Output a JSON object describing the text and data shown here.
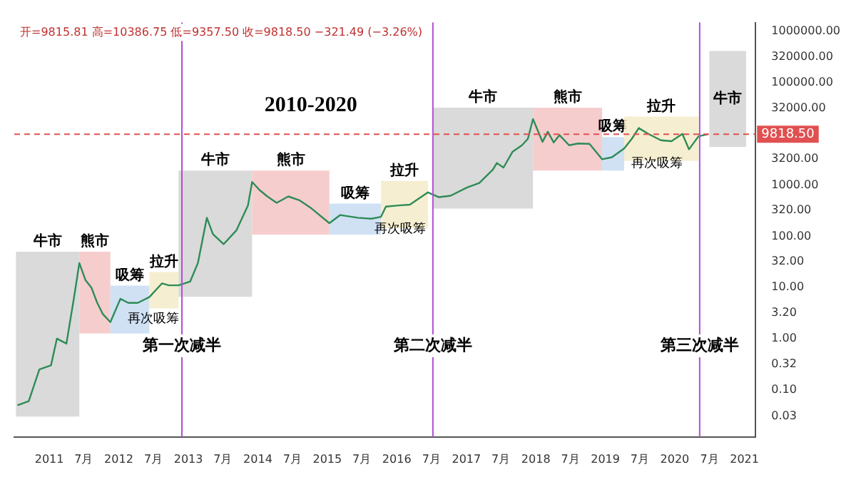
{
  "chart_data": {
    "type": "line",
    "title": "2010-2020",
    "x": [
      "2010-07-18",
      "2010-09-15",
      "2010-11-10",
      "2011-01-10",
      "2011-02-10",
      "2011-04-01",
      "2011-05-10",
      "2011-06-08",
      "2011-07-10",
      "2011-08-10",
      "2011-09-10",
      "2011-10-10",
      "2011-11-18",
      "2012-01-10",
      "2012-02-20",
      "2012-04-10",
      "2012-06-10",
      "2012-08-15",
      "2012-09-20",
      "2012-11-10",
      "2013-01-10",
      "2013-02-20",
      "2013-04-08",
      "2013-05-10",
      "2013-07-05",
      "2013-09-10",
      "2013-11-10",
      "2013-12-02",
      "2014-01-10",
      "2014-02-20",
      "2014-04-10",
      "2014-06-10",
      "2014-08-10",
      "2014-10-10",
      "2015-01-12",
      "2015-03-10",
      "2015-06-10",
      "2015-08-20",
      "2015-10-10",
      "2015-11-05",
      "2016-01-10",
      "2016-03-10",
      "2016-06-13",
      "2016-08-10",
      "2016-10-10",
      "2017-01-05",
      "2017-03-10",
      "2017-05-20",
      "2017-06-10",
      "2017-07-15",
      "2017-09-01",
      "2017-10-20",
      "2017-11-20",
      "2017-12-17",
      "2018-02-05",
      "2018-03-05",
      "2018-04-05",
      "2018-05-05",
      "2018-06-25",
      "2018-08-10",
      "2018-10-10",
      "2018-12-15",
      "2019-02-05",
      "2019-04-10",
      "2019-05-20",
      "2019-06-26",
      "2019-08-15",
      "2019-10-20",
      "2019-12-15",
      "2020-02-10",
      "2020-03-16",
      "2020-05-05",
      "2020-06-22"
    ],
    "series": [
      {
        "color": "#2e8b57",
        "values": [
          0.05,
          0.06,
          0.25,
          0.3,
          1.0,
          0.8,
          6,
          30,
          14,
          10,
          5,
          3,
          2.1,
          6,
          5,
          5,
          6.5,
          12,
          11,
          11,
          13,
          30,
          230,
          110,
          70,
          130,
          400,
          1150,
          800,
          600,
          450,
          600,
          500,
          350,
          180,
          260,
          230,
          220,
          240,
          380,
          400,
          415,
          720,
          580,
          620,
          900,
          1100,
          2000,
          2700,
          2200,
          4500,
          6000,
          8000,
          19500,
          7000,
          11000,
          6800,
          9500,
          6000,
          6500,
          6400,
          3200,
          3500,
          5200,
          8000,
          13000,
          10000,
          7500,
          7200,
          10000,
          5000,
          9000,
          9818.5
        ]
      }
    ],
    "log": "y",
    "grid": false,
    "legend": false,
    "xlim": [
      "2010-07-01",
      "2021-03-01"
    ],
    "xticks": [
      {
        "value": "2011-01-01",
        "label": "2011"
      },
      {
        "value": "2011-07-01",
        "label": "7月"
      },
      {
        "value": "2012-01-01",
        "label": "2012"
      },
      {
        "value": "2012-07-01",
        "label": "7月"
      },
      {
        "value": "2013-01-01",
        "label": "2013"
      },
      {
        "value": "2013-07-01",
        "label": "7月"
      },
      {
        "value": "2014-01-01",
        "label": "2014"
      },
      {
        "value": "2014-07-01",
        "label": "7月"
      },
      {
        "value": "2015-01-01",
        "label": "2015"
      },
      {
        "value": "2015-07-01",
        "label": "7月"
      },
      {
        "value": "2016-01-01",
        "label": "2016"
      },
      {
        "value": "2016-07-01",
        "label": "7月"
      },
      {
        "value": "2017-01-01",
        "label": "2017"
      },
      {
        "value": "2017-07-01",
        "label": "7月"
      },
      {
        "value": "2018-01-01",
        "label": "2018"
      },
      {
        "value": "2018-07-01",
        "label": "7月"
      },
      {
        "value": "2019-01-01",
        "label": "2019"
      },
      {
        "value": "2019-07-01",
        "label": "7月"
      },
      {
        "value": "2020-01-01",
        "label": "2020"
      },
      {
        "value": "2020-07-01",
        "label": "7月"
      },
      {
        "value": "2021-01-01",
        "label": "2021"
      }
    ],
    "ylim": [
      0.012,
      1500000
    ],
    "yticks": [
      {
        "value": 0.03,
        "label": "0.03"
      },
      {
        "value": 0.1,
        "label": "0.10"
      },
      {
        "value": 0.32,
        "label": "0.32"
      },
      {
        "value": 1,
        "label": "1.00"
      },
      {
        "value": 3.2,
        "label": "3.20"
      },
      {
        "value": 10,
        "label": "10.00"
      },
      {
        "value": 32,
        "label": "32.00"
      },
      {
        "value": 100,
        "label": "100.00"
      },
      {
        "value": 320,
        "label": "320.00"
      },
      {
        "value": 1000,
        "label": "1000.00"
      },
      {
        "value": 3200,
        "label": "3200.00"
      },
      {
        "value": 32000,
        "label": "32000.00"
      },
      {
        "value": 100000,
        "label": "100000.00"
      },
      {
        "value": 320000,
        "label": "320000.00"
      },
      {
        "value": 1000000,
        "label": "1000000.00"
      }
    ],
    "bands": [
      {
        "axis": "x",
        "from": "2010-07-10",
        "to": "2011-06-08",
        "label": "牛市",
        "color": "#d4d4d4"
      },
      {
        "axis": "x",
        "from": "2011-06-08",
        "to": "2011-11-18",
        "label": "熊市",
        "color": "#f4c4c4"
      },
      {
        "axis": "x",
        "from": "2011-11-18",
        "to": "2012-06-10",
        "label": "吸筹",
        "color": "#c8dcf2"
      },
      {
        "axis": "x",
        "from": "2012-06-10",
        "to": "2012-11-10",
        "label": "拉升",
        "color": "#f5ebc8"
      },
      {
        "axis": "x",
        "from": "2012-11-10",
        "to": "2013-12-02",
        "label": "牛市",
        "color": "#d4d4d4"
      },
      {
        "axis": "x",
        "from": "2013-12-02",
        "to": "2015-01-12",
        "label": "熊市",
        "color": "#f4c4c4"
      },
      {
        "axis": "x",
        "from": "2015-01-12",
        "to": "2015-10-10",
        "label": "吸筹",
        "color": "#c8dcf2"
      },
      {
        "axis": "x",
        "from": "2015-10-10",
        "to": "2016-06-13",
        "label": "拉升",
        "color": "#f5ebc8"
      },
      {
        "axis": "x",
        "from": "2016-07-09",
        "to": "2017-12-17",
        "label": "牛市",
        "color": "#d4d4d4"
      },
      {
        "axis": "x",
        "from": "2017-12-17",
        "to": "2018-12-15",
        "label": "熊市",
        "color": "#f4c4c4"
      },
      {
        "axis": "x",
        "from": "2018-12-15",
        "to": "2019-04-10",
        "label": "吸筹",
        "color": "#c8dcf2"
      },
      {
        "axis": "x",
        "from": "2019-04-10",
        "to": "2020-05-05",
        "label": "拉升",
        "color": "#f5ebc8"
      },
      {
        "axis": "x",
        "from": "2020-07-01",
        "to": "2021-01-10",
        "label": "牛市",
        "color": "#d4d4d4"
      }
    ],
    "ref_lines": [
      {
        "axis": "x",
        "value": "2012-11-28",
        "label": "第一次减半",
        "color": "#b050d0"
      },
      {
        "axis": "x",
        "value": "2016-07-09",
        "label": "第二次减半",
        "color": "#b050d0"
      },
      {
        "axis": "x",
        "value": "2020-05-11",
        "label": "第三次减半",
        "color": "#b050d0"
      },
      {
        "axis": "y",
        "value": 9818.5,
        "label": "9818.50",
        "color": "#e05050",
        "line_style": "dashed"
      }
    ],
    "annotations": [
      "开=9815.81 高=10386.75 低=9357.50 收=9818.50 −321.49 (−3.26%)",
      {
        "text": "再次吸筹",
        "x": "2012-07-01",
        "y": 7
      },
      {
        "text": "再次吸筹",
        "x": "2016-01-20",
        "y": 400
      },
      {
        "text": "再次吸筹",
        "x": "2019-10-01",
        "y": 7500
      }
    ]
  }
}
